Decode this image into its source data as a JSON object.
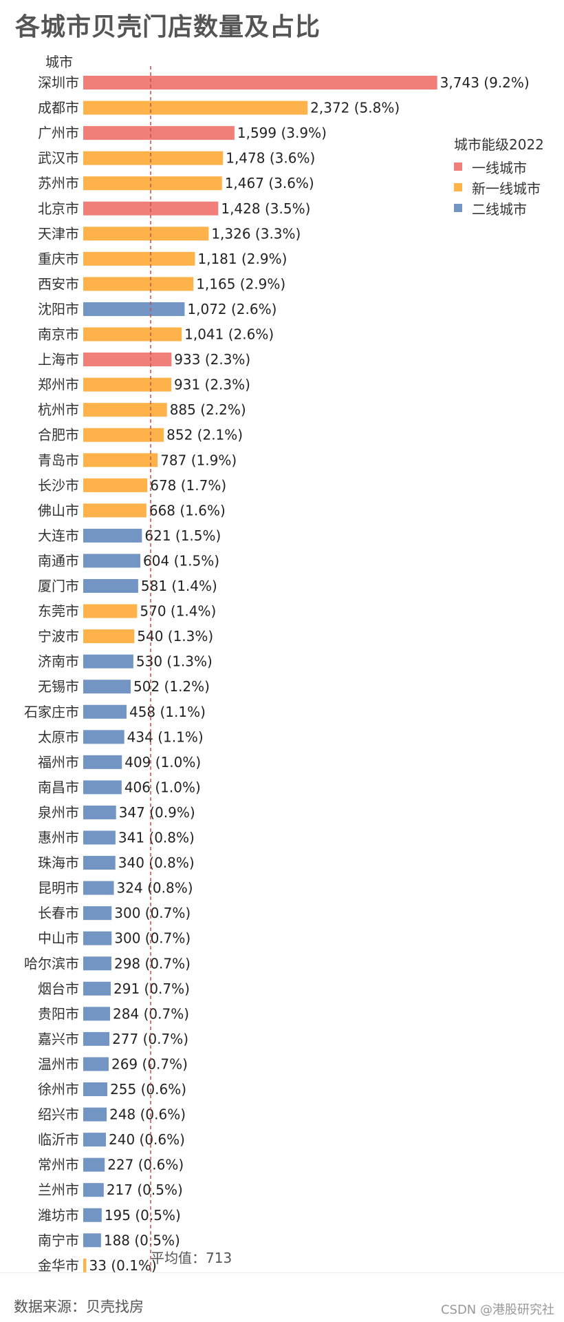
{
  "title": "各城市贝壳门店数量及占比",
  "source": "数据来源：贝壳找房",
  "watermark": "CSDN @港股研究社",
  "chart_data": {
    "type": "bar",
    "orientation": "horizontal",
    "ylabel": "城市",
    "legend": {
      "title": "城市能级2022",
      "placement": "right",
      "items": [
        {
          "label": "一线城市",
          "color": "#f07f7a"
        },
        {
          "label": "新一线城市",
          "color": "#fdb24a"
        },
        {
          "label": "二线城市",
          "color": "#7295c4"
        }
      ]
    },
    "average": {
      "value": 713,
      "label": "平均值：713"
    },
    "categories": [
      "深圳市",
      "成都市",
      "广州市",
      "武汉市",
      "苏州市",
      "北京市",
      "天津市",
      "重庆市",
      "西安市",
      "沈阳市",
      "南京市",
      "上海市",
      "郑州市",
      "杭州市",
      "合肥市",
      "青岛市",
      "长沙市",
      "佛山市",
      "大连市",
      "南通市",
      "厦门市",
      "东莞市",
      "宁波市",
      "济南市",
      "无锡市",
      "石家庄市",
      "太原市",
      "福州市",
      "南昌市",
      "泉州市",
      "惠州市",
      "珠海市",
      "昆明市",
      "长春市",
      "中山市",
      "哈尔滨市",
      "烟台市",
      "贵阳市",
      "嘉兴市",
      "温州市",
      "徐州市",
      "绍兴市",
      "临沂市",
      "常州市",
      "兰州市",
      "潍坊市",
      "南宁市",
      "金华市"
    ],
    "values": [
      3743,
      2372,
      1599,
      1478,
      1467,
      1428,
      1326,
      1181,
      1165,
      1072,
      1041,
      933,
      931,
      885,
      852,
      787,
      678,
      668,
      621,
      604,
      581,
      570,
      540,
      530,
      502,
      458,
      434,
      409,
      406,
      347,
      341,
      340,
      324,
      300,
      300,
      298,
      291,
      284,
      277,
      269,
      255,
      248,
      240,
      227,
      217,
      195,
      188,
      33
    ],
    "value_labels": [
      "3,743",
      "2,372",
      "1,599",
      "1,478",
      "1,467",
      "1,428",
      "1,326",
      "1,181",
      "1,165",
      "1,072",
      "1,041",
      "933",
      "931",
      "885",
      "852",
      "787",
      "678",
      "668",
      "621",
      "604",
      "581",
      "570",
      "540",
      "530",
      "502",
      "458",
      "434",
      "409",
      "406",
      "347",
      "341",
      "340",
      "324",
      "300",
      "300",
      "298",
      "291",
      "284",
      "277",
      "269",
      "255",
      "248",
      "240",
      "227",
      "217",
      "195",
      "188",
      "33"
    ],
    "shares": [
      "(9.2%)",
      "(5.8%)",
      "(3.9%)",
      "(3.6%)",
      "(3.6%)",
      "(3.5%)",
      "(3.3%)",
      "(2.9%)",
      "(2.9%)",
      "(2.6%)",
      "(2.6%)",
      "(2.3%)",
      "(2.3%)",
      "(2.2%)",
      "(2.1%)",
      "(1.9%)",
      "(1.7%)",
      "(1.6%)",
      "(1.5%)",
      "(1.5%)",
      "(1.4%)",
      "(1.4%)",
      "(1.3%)",
      "(1.3%)",
      "(1.2%)",
      "(1.1%)",
      "(1.1%)",
      "(1.0%)",
      "(1.0%)",
      "(0.9%)",
      "(0.8%)",
      "(0.8%)",
      "(0.8%)",
      "(0.7%)",
      "(0.7%)",
      "(0.7%)",
      "(0.7%)",
      "(0.7%)",
      "(0.7%)",
      "(0.7%)",
      "(0.6%)",
      "(0.6%)",
      "(0.6%)",
      "(0.6%)",
      "(0.5%)",
      "(0.5%)",
      "(0.5%)",
      "(0.1%)"
    ],
    "tier": [
      0,
      1,
      0,
      1,
      1,
      0,
      1,
      1,
      1,
      2,
      1,
      0,
      1,
      1,
      1,
      1,
      1,
      1,
      2,
      2,
      2,
      1,
      1,
      2,
      2,
      2,
      2,
      2,
      2,
      2,
      2,
      2,
      2,
      2,
      2,
      2,
      2,
      2,
      2,
      2,
      2,
      2,
      2,
      2,
      2,
      2,
      2,
      1
    ]
  }
}
